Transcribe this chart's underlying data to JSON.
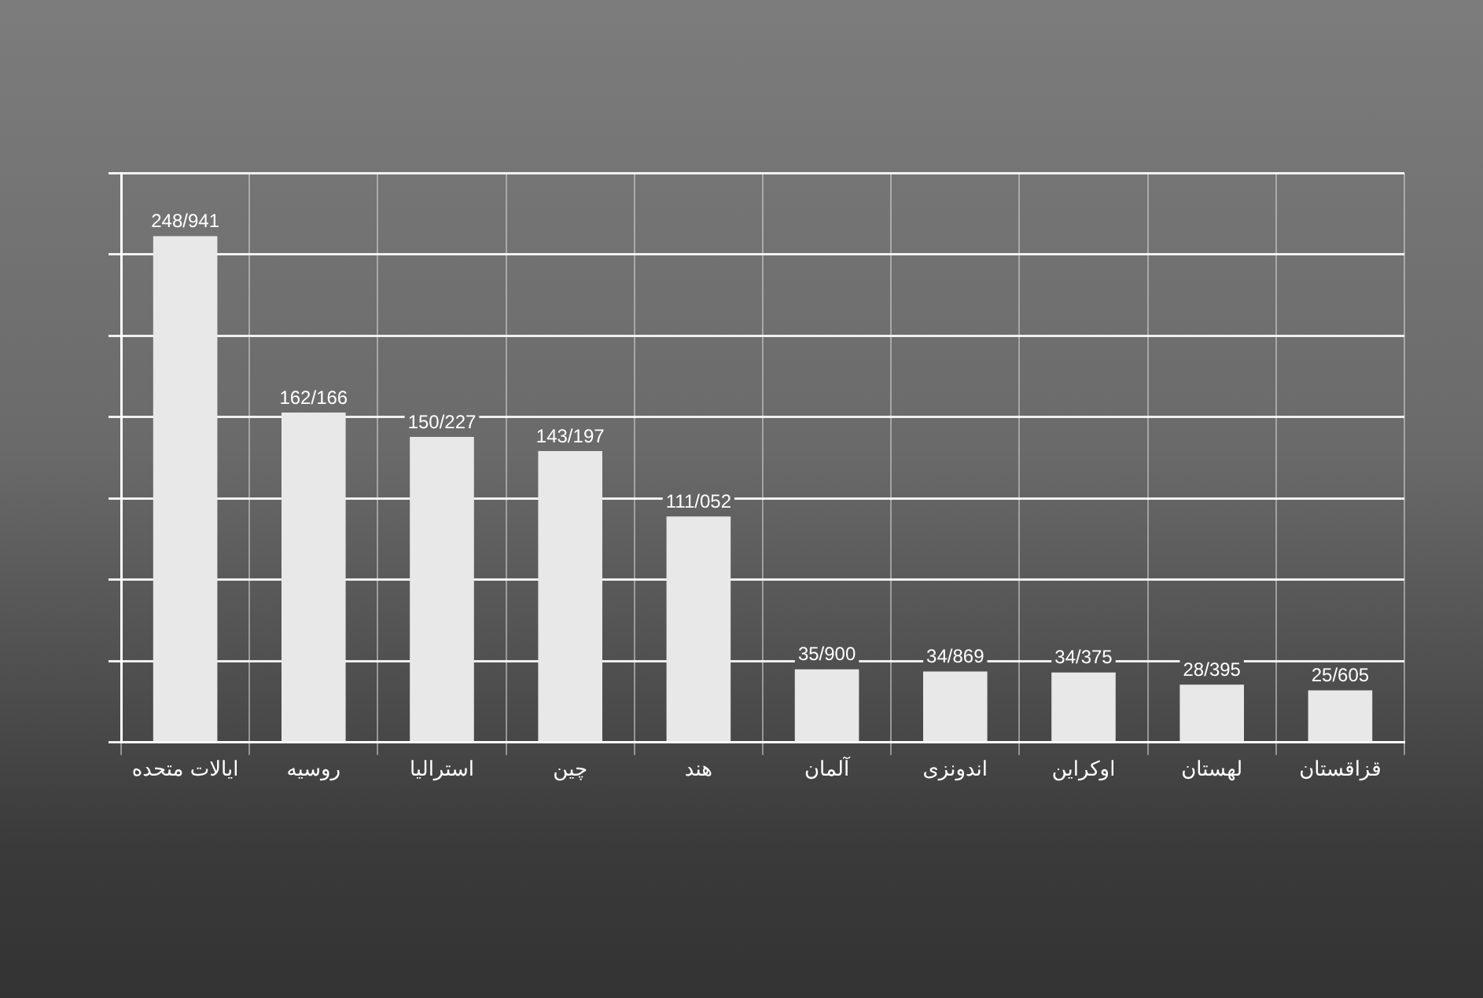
{
  "chart_data": {
    "type": "bar",
    "categories": [
      "ایالات متحده",
      "روسیه",
      "استرالیا",
      "چین",
      "هند",
      "آلمان",
      "اندونزی",
      "اوکراین",
      "لهستان",
      "قزاقستان"
    ],
    "values": [
      248.941,
      162.166,
      150.227,
      143.197,
      111.052,
      35.9,
      34.869,
      34.375,
      28.395,
      25.605
    ],
    "value_labels": [
      "248/941",
      "162/166",
      "150/227",
      "143/197",
      "111/052",
      "35/900",
      "34/869",
      "34/375",
      "28/395",
      "25/605"
    ],
    "color": "#e8e8e8",
    "ylim": [
      0,
      280
    ],
    "yticks": [
      {
        "value": 0,
        "label": null
      },
      {
        "value": 40,
        "label": null
      },
      {
        "value": 80,
        "label": null
      },
      {
        "value": 120,
        "label": null
      },
      {
        "value": 160,
        "label": null
      },
      {
        "value": 200,
        "label": null
      },
      {
        "value": 240,
        "label": null
      },
      {
        "value": 280,
        "label": null
      }
    ],
    "tick_labels": "x",
    "grid": true
  }
}
